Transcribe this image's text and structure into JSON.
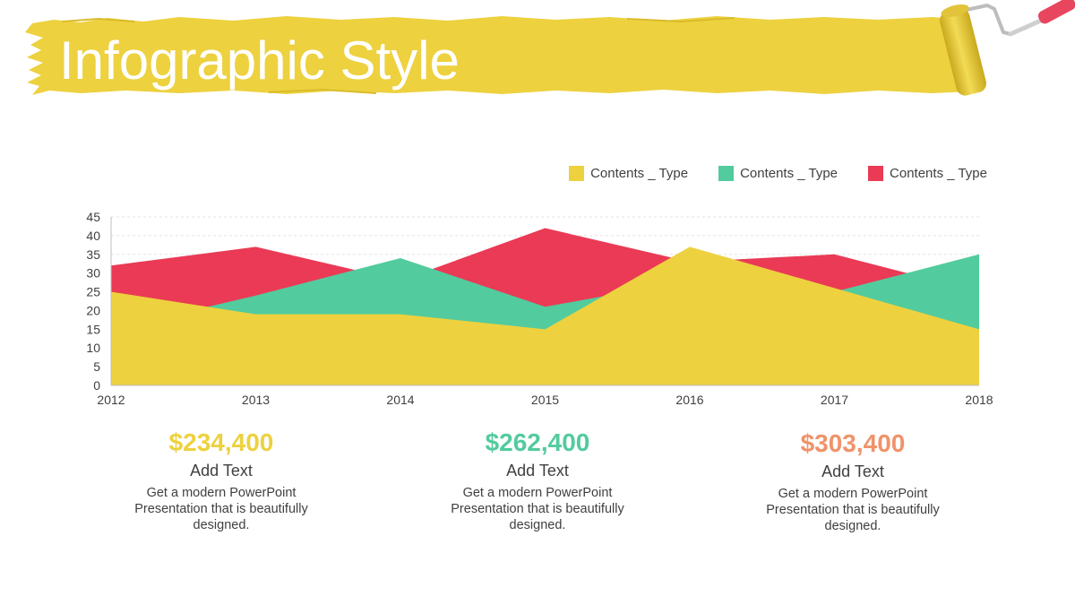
{
  "header": {
    "title": "Infographic Style",
    "banner_color": "#EDD13F",
    "icon": "paint-roller-icon"
  },
  "colors": {
    "yellow": "#EDD13F",
    "green": "#52CB9E",
    "red": "#EA3A55",
    "orange": "#F0936A"
  },
  "chart_data": {
    "type": "area",
    "x": [
      "2012",
      "2013",
      "2014",
      "2015",
      "2016",
      "2017",
      "2018"
    ],
    "yticks": [
      "0",
      "5",
      "10",
      "15",
      "20",
      "25",
      "30",
      "35",
      "40",
      "45"
    ],
    "ylim": [
      0,
      45
    ],
    "grid": true,
    "legend_position": "top-right",
    "series": [
      {
        "name": "Contents _ Type",
        "color": "#EA3A55",
        "values": [
          32,
          37,
          28,
          42,
          33,
          35,
          25
        ]
      },
      {
        "name": "Contents _ Type",
        "color": "#52CB9E",
        "values": [
          15,
          24,
          34,
          21,
          28,
          25,
          35
        ]
      },
      {
        "name": "Contents _ Type",
        "color": "#EDD13F",
        "values": [
          25,
          19,
          19,
          15,
          37,
          26,
          15
        ]
      }
    ],
    "legend_order": [
      2,
      1,
      0
    ]
  },
  "stats": [
    {
      "value": "$234,400",
      "heading": "Add Text",
      "description": "Get a modern PowerPoint Presentation that is beautifully designed.",
      "color": "#EDD13F"
    },
    {
      "value": "$262,400",
      "heading": "Add Text",
      "description": "Get a modern PowerPoint Presentation that is beautifully designed.",
      "color": "#52CB9E"
    },
    {
      "value": "$303,400",
      "heading": "Add Text",
      "description": "Get a modern PowerPoint Presentation that is beautifully designed.",
      "color": "#F0936A"
    }
  ]
}
